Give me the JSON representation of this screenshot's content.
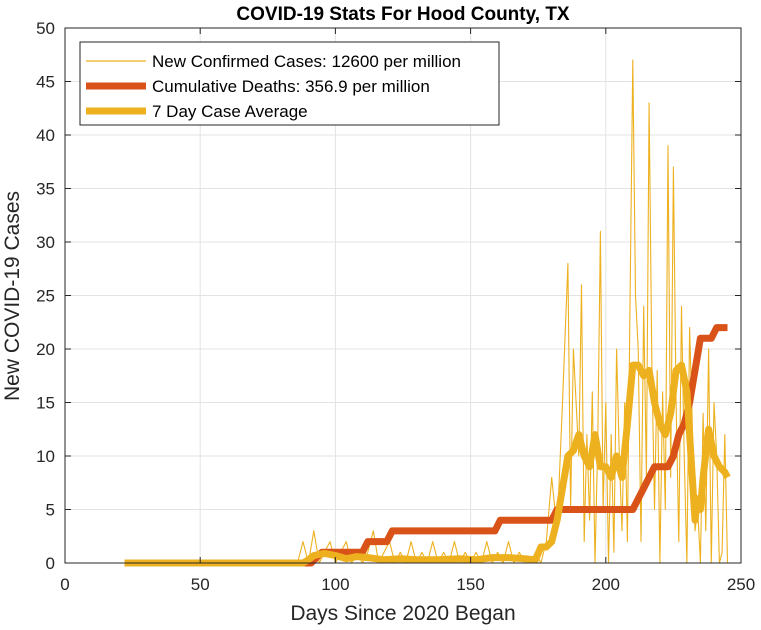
{
  "chart_data": {
    "type": "line",
    "title": "COVID-19 Stats For Hood County, TX",
    "xlabel": "Days Since 2020 Began",
    "ylabel": "New COVID-19 Cases",
    "xlim": [
      0,
      250
    ],
    "ylim": [
      0,
      50
    ],
    "xticks": [
      0,
      50,
      100,
      150,
      200,
      250
    ],
    "yticks": [
      0,
      5,
      10,
      15,
      20,
      25,
      30,
      35,
      40,
      45,
      50
    ],
    "grid": true,
    "legend_position": "top-left",
    "series": [
      {
        "name": "New Confirmed Cases: 12600 per million",
        "color": "#EDB120",
        "style": "thin",
        "points": [
          [
            22,
            0
          ],
          [
            86,
            0
          ],
          [
            88,
            2
          ],
          [
            90,
            0
          ],
          [
            92,
            3
          ],
          [
            94,
            0
          ],
          [
            96,
            1
          ],
          [
            98,
            2
          ],
          [
            100,
            0
          ],
          [
            102,
            1
          ],
          [
            104,
            2
          ],
          [
            106,
            0
          ],
          [
            108,
            1
          ],
          [
            110,
            0
          ],
          [
            112,
            1
          ],
          [
            114,
            3
          ],
          [
            116,
            0
          ],
          [
            118,
            1
          ],
          [
            120,
            2
          ],
          [
            122,
            0
          ],
          [
            124,
            1
          ],
          [
            126,
            0
          ],
          [
            128,
            2
          ],
          [
            130,
            0
          ],
          [
            132,
            1
          ],
          [
            134,
            0
          ],
          [
            136,
            2
          ],
          [
            138,
            0
          ],
          [
            140,
            1
          ],
          [
            142,
            0
          ],
          [
            144,
            2
          ],
          [
            146,
            0
          ],
          [
            148,
            1
          ],
          [
            150,
            0
          ],
          [
            152,
            1
          ],
          [
            154,
            0
          ],
          [
            156,
            2
          ],
          [
            158,
            0
          ],
          [
            160,
            1
          ],
          [
            162,
            0
          ],
          [
            164,
            2
          ],
          [
            166,
            0
          ],
          [
            168,
            1
          ],
          [
            170,
            0
          ],
          [
            172,
            0
          ],
          [
            174,
            1
          ],
          [
            176,
            0
          ],
          [
            178,
            2
          ],
          [
            180,
            8
          ],
          [
            182,
            3
          ],
          [
            184,
            15
          ],
          [
            186,
            28
          ],
          [
            187,
            5
          ],
          [
            188,
            20
          ],
          [
            190,
            10
          ],
          [
            191,
            26
          ],
          [
            192,
            2
          ],
          [
            193,
            12
          ],
          [
            194,
            4
          ],
          [
            195,
            16
          ],
          [
            196,
            0
          ],
          [
            197,
            11
          ],
          [
            198,
            31
          ],
          [
            199,
            5
          ],
          [
            200,
            15
          ],
          [
            201,
            0
          ],
          [
            202,
            12
          ],
          [
            203,
            1
          ],
          [
            204,
            20
          ],
          [
            205,
            10
          ],
          [
            206,
            3
          ],
          [
            207,
            15
          ],
          [
            208,
            2
          ],
          [
            209,
            25
          ],
          [
            210,
            47
          ],
          [
            211,
            25
          ],
          [
            212,
            20
          ],
          [
            213,
            2
          ],
          [
            214,
            24
          ],
          [
            215,
            8
          ],
          [
            216,
            43
          ],
          [
            217,
            19
          ],
          [
            218,
            5
          ],
          [
            219,
            18
          ],
          [
            220,
            0
          ],
          [
            221,
            16
          ],
          [
            222,
            5
          ],
          [
            223,
            39
          ],
          [
            224,
            8
          ],
          [
            225,
            37
          ],
          [
            226,
            15
          ],
          [
            227,
            2
          ],
          [
            228,
            24
          ],
          [
            229,
            10
          ],
          [
            230,
            0
          ],
          [
            231,
            22
          ],
          [
            232,
            13
          ],
          [
            233,
            3
          ],
          [
            234,
            5
          ],
          [
            235,
            0
          ],
          [
            236,
            14
          ],
          [
            237,
            3
          ],
          [
            238,
            20
          ],
          [
            239,
            0
          ],
          [
            240,
            15
          ],
          [
            241,
            10
          ],
          [
            242,
            0
          ],
          [
            243,
            1
          ],
          [
            244,
            12
          ],
          [
            245,
            0
          ]
        ]
      },
      {
        "name": "Cumulative Deaths: 356.9 per million",
        "color": "#D95319",
        "style": "thick",
        "points": [
          [
            22,
            0
          ],
          [
            91,
            0
          ],
          [
            93,
            0.5
          ],
          [
            95,
            1
          ],
          [
            110,
            1
          ],
          [
            112,
            2
          ],
          [
            119,
            2
          ],
          [
            121,
            3
          ],
          [
            159,
            3
          ],
          [
            161,
            4
          ],
          [
            180,
            4
          ],
          [
            182,
            5
          ],
          [
            210,
            5
          ],
          [
            212,
            6
          ],
          [
            214,
            7
          ],
          [
            216,
            8
          ],
          [
            218,
            9
          ],
          [
            223,
            9
          ],
          [
            225,
            10
          ],
          [
            227,
            12
          ],
          [
            229,
            13
          ],
          [
            231,
            15
          ],
          [
            233,
            18
          ],
          [
            235,
            21
          ],
          [
            239,
            21
          ],
          [
            241,
            22
          ],
          [
            245,
            22
          ]
        ]
      },
      {
        "name": "7 Day Case Average",
        "color": "#EDB120",
        "style": "thick",
        "points": [
          [
            22,
            0
          ],
          [
            88,
            0
          ],
          [
            90,
            0.3
          ],
          [
            92,
            0.7
          ],
          [
            96,
            0.9
          ],
          [
            100,
            0.7
          ],
          [
            104,
            0.4
          ],
          [
            108,
            0.6
          ],
          [
            112,
            0.5
          ],
          [
            118,
            0.3
          ],
          [
            124,
            0.4
          ],
          [
            130,
            0.3
          ],
          [
            138,
            0.3
          ],
          [
            146,
            0.4
          ],
          [
            152,
            0.3
          ],
          [
            158,
            0.5
          ],
          [
            164,
            0.5
          ],
          [
            170,
            0.4
          ],
          [
            174,
            0.3
          ],
          [
            176,
            1.5
          ],
          [
            178,
            1.5
          ],
          [
            180,
            2
          ],
          [
            182,
            4
          ],
          [
            184,
            7
          ],
          [
            186,
            10
          ],
          [
            188,
            10.5
          ],
          [
            190,
            12
          ],
          [
            192,
            10
          ],
          [
            194,
            9
          ],
          [
            196,
            12
          ],
          [
            198,
            9
          ],
          [
            200,
            9
          ],
          [
            202,
            8
          ],
          [
            204,
            10
          ],
          [
            206,
            8
          ],
          [
            208,
            13
          ],
          [
            210,
            18.5
          ],
          [
            212,
            18.5
          ],
          [
            214,
            17.5
          ],
          [
            216,
            18
          ],
          [
            218,
            15
          ],
          [
            220,
            13
          ],
          [
            222,
            12
          ],
          [
            224,
            14
          ],
          [
            226,
            18
          ],
          [
            228,
            18.5
          ],
          [
            230,
            16
          ],
          [
            232,
            8
          ],
          [
            233,
            4
          ],
          [
            234,
            6
          ],
          [
            235,
            5
          ],
          [
            236,
            8
          ],
          [
            238,
            12.5
          ],
          [
            240,
            10
          ],
          [
            242,
            9
          ],
          [
            244,
            8.5
          ],
          [
            245,
            8
          ]
        ]
      }
    ]
  }
}
